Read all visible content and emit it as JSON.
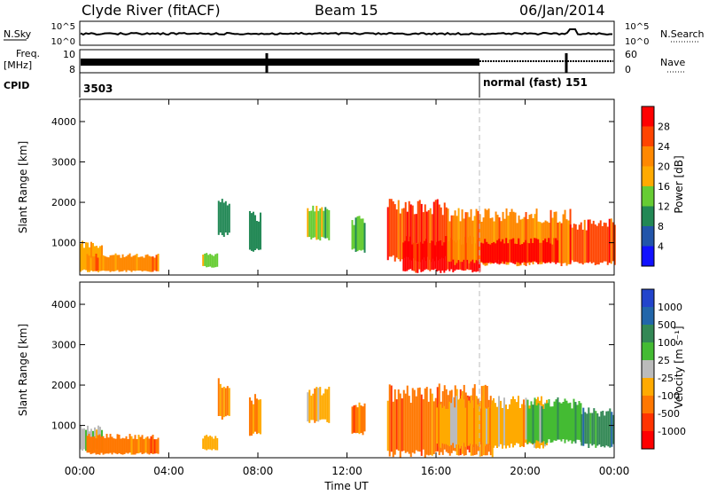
{
  "header": {
    "station": "Clyde River (fitACF)",
    "beam": "Beam 15",
    "date": "06/Jan/2014"
  },
  "status_panels": {
    "nsky_label": "N.Sky",
    "nsearch_label": "N.Search",
    "nsky_top_tick": "10^5",
    "nsky_bottom_tick": "10^0",
    "nsearch_top_tick": "10^5",
    "nsearch_bottom_tick": "10^0",
    "freq_label_1": "Freq.",
    "freq_label_2": "[MHz]",
    "freq_ticks": [
      "10",
      "8"
    ],
    "nave_label": "Nave",
    "nave_ticks": [
      "60",
      "0"
    ],
    "cpid_label": "CPID",
    "cpid_left": "3503",
    "cpid_right": "normal (fast) 151"
  },
  "time_axis": {
    "label": "Time UT",
    "ticks": [
      "00:00",
      "04:00",
      "08:00",
      "12:00",
      "16:00",
      "20:00",
      "00:00"
    ]
  },
  "chart_data": [
    {
      "type": "heatmap",
      "panel": "power",
      "ylabel": "Slant Range [km]",
      "yticks": [
        1000,
        2000,
        3000,
        4000
      ],
      "ylim": [
        200,
        4550
      ],
      "xlim_hours": [
        0,
        24
      ],
      "colorbar_label": "Power [dB]",
      "colorbar_ticks": [
        "28",
        "24",
        "20",
        "16",
        "12",
        "8",
        "4"
      ],
      "colorbar_colors": [
        "#ff0000",
        "#ff4400",
        "#ff8800",
        "#ffaa00",
        "#66cc33",
        "#228855",
        "#2255aa",
        "#1111ff"
      ],
      "regions": [
        {
          "t0": 0.0,
          "t1": 1.0,
          "r0": 300,
          "r1": 900,
          "level": 3
        },
        {
          "t0": 0.3,
          "t1": 3.5,
          "r0": 300,
          "r1": 650,
          "level": 2
        },
        {
          "t0": 5.5,
          "t1": 6.2,
          "r0": 400,
          "r1": 700,
          "level": 4
        },
        {
          "t0": 6.2,
          "t1": 6.7,
          "r0": 1200,
          "r1": 2000,
          "level": 5
        },
        {
          "t0": 7.6,
          "t1": 8.1,
          "r0": 800,
          "r1": 1600,
          "level": 5
        },
        {
          "t0": 10.2,
          "t1": 11.2,
          "r0": 1100,
          "r1": 1800,
          "level": 4
        },
        {
          "t0": 12.2,
          "t1": 12.8,
          "r0": 800,
          "r1": 1500,
          "level": 4
        },
        {
          "t0": 13.8,
          "t1": 16.5,
          "r0": 600,
          "r1": 1800,
          "level": 1
        },
        {
          "t0": 14.5,
          "t1": 18.0,
          "r0": 300,
          "r1": 1000,
          "level": 0
        },
        {
          "t0": 16.5,
          "t1": 22.0,
          "r0": 500,
          "r1": 1600,
          "level": 2
        },
        {
          "t0": 18.0,
          "t1": 21.5,
          "r0": 500,
          "r1": 1000,
          "level": 0
        },
        {
          "t0": 22.0,
          "t1": 24.0,
          "r0": 500,
          "r1": 1400,
          "level": 1
        }
      ]
    },
    {
      "type": "heatmap",
      "panel": "velocity",
      "ylabel": "Slant Range [km]",
      "yticks": [
        1000,
        2000,
        3000,
        4000
      ],
      "ylim": [
        200,
        4550
      ],
      "xlim_hours": [
        0,
        24
      ],
      "colorbar_label": "Velocity [m s⁻¹]",
      "colorbar_ticks": [
        "1000",
        "500",
        "100",
        "25",
        "-25",
        "-100",
        "-500",
        "-1000"
      ],
      "colorbar_colors": [
        "#2244cc",
        "#2266aa",
        "#338855",
        "#44bb33",
        "#bbbbbb",
        "#ffaa00",
        "#ff7700",
        "#ff3300",
        "#ff0000"
      ],
      "regions": [
        {
          "t0": 0.0,
          "t1": 1.0,
          "r0": 400,
          "r1": 900,
          "level": 4
        },
        {
          "t0": 0.3,
          "t1": 3.5,
          "r0": 300,
          "r1": 700,
          "level": 6
        },
        {
          "t0": 5.5,
          "t1": 6.2,
          "r0": 400,
          "r1": 700,
          "level": 5
        },
        {
          "t0": 6.2,
          "t1": 6.7,
          "r0": 1200,
          "r1": 2000,
          "level": 6
        },
        {
          "t0": 7.6,
          "t1": 8.1,
          "r0": 800,
          "r1": 1600,
          "level": 6
        },
        {
          "t0": 10.2,
          "t1": 11.2,
          "r0": 1100,
          "r1": 1800,
          "level": 5
        },
        {
          "t0": 12.2,
          "t1": 12.8,
          "r0": 800,
          "r1": 1500,
          "level": 6
        },
        {
          "t0": 13.8,
          "t1": 18.5,
          "r0": 300,
          "r1": 1700,
          "level": 6
        },
        {
          "t0": 16.0,
          "t1": 21.0,
          "r0": 500,
          "r1": 1500,
          "level": 5
        },
        {
          "t0": 20.0,
          "t1": 22.5,
          "r0": 600,
          "r1": 1500,
          "level": 3
        },
        {
          "t0": 22.5,
          "t1": 24.0,
          "r0": 500,
          "r1": 1300,
          "level": 2
        }
      ]
    }
  ]
}
